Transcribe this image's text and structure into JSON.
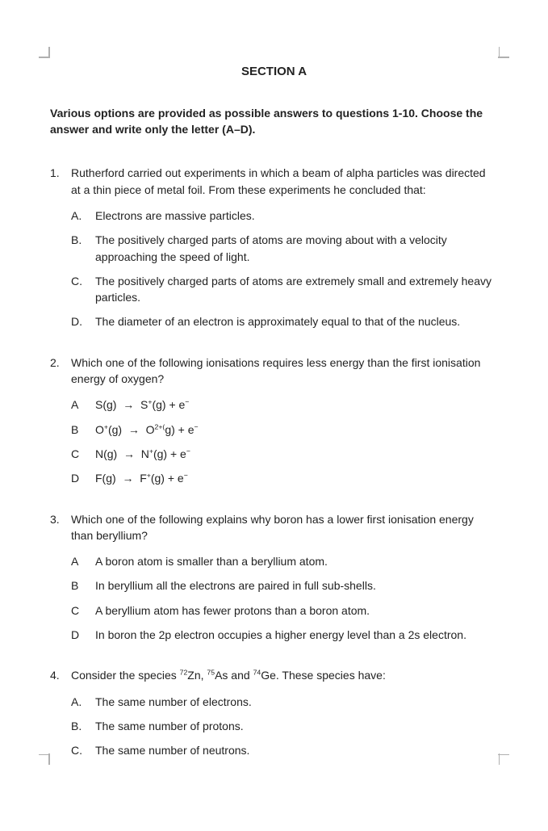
{
  "section_title": "SECTION A",
  "instructions": "Various options are provided as possible answers to questions 1-10. Choose the answer and write only the letter (A–D).",
  "questions": [
    {
      "number": "1.",
      "stem": "Rutherford carried out experiments in which a beam of alpha particles was directed at a thin piece of metal foil. From these experiments he concluded that:",
      "letter_style": "dotted",
      "options": [
        {
          "letter": "A.",
          "text": "Electrons are massive particles."
        },
        {
          "letter": "B.",
          "text": "The positively charged parts of atoms are moving about with a velocity approaching the speed of light."
        },
        {
          "letter": "C.",
          "text": "The positively charged parts of atoms are extremely small and extremely heavy particles."
        },
        {
          "letter": "D.",
          "text": "The diameter of an electron is approximately equal to that of the nucleus."
        }
      ]
    },
    {
      "number": "2.",
      "stem": "Which one of the following ionisations requires less energy than the first ionisation energy of oxygen?",
      "letter_style": "plain",
      "options": [
        {
          "letter": "A",
          "html": "S(g)&nbsp;&nbsp;→&nbsp;&nbsp;S<sup>+</sup>(g) + e<sup>−</sup>"
        },
        {
          "letter": "B",
          "html": "O<sup>+</sup>(g)&nbsp;&nbsp;→&nbsp;&nbsp;O<sup>2+</sup><sup>(</sup>g) + e<sup>−</sup>"
        },
        {
          "letter": "C",
          "html": "N(g)&nbsp;&nbsp;→&nbsp;&nbsp;N<sup>+</sup>(g) + e<sup>−</sup>"
        },
        {
          "letter": "D",
          "html": "F(g)&nbsp;&nbsp;→&nbsp;&nbsp;F<sup>+</sup>(g) + e<sup>−</sup>"
        }
      ]
    },
    {
      "number": "3.",
      "stem": "Which one of the following explains why boron has a lower first ionisation energy than beryllium?",
      "letter_style": "plain",
      "options": [
        {
          "letter": "A",
          "text": "A boron atom is smaller than a beryllium atom."
        },
        {
          "letter": "B",
          "text": "In beryllium all the electrons are paired in full sub-shells."
        },
        {
          "letter": "C",
          "text": "A beryllium atom has fewer protons than a boron atom."
        },
        {
          "letter": "D",
          "text": "In boron the 2p electron occupies a higher energy level than a 2s electron."
        }
      ]
    },
    {
      "number": "4.",
      "stem_html": "Consider the species <span class=\"nowrap\"><sup>72</sup>Zn</span>, <span class=\"nowrap\"><sup>75</sup>As</span> and <span class=\"nowrap\"><sup>74</sup>Ge</span>. These species have:",
      "letter_style": "dotted",
      "options": [
        {
          "letter": "A.",
          "text": "The same number of electrons."
        },
        {
          "letter": "B.",
          "text": "The same number of protons."
        },
        {
          "letter": "C.",
          "text": "The same number of neutrons."
        }
      ]
    }
  ]
}
